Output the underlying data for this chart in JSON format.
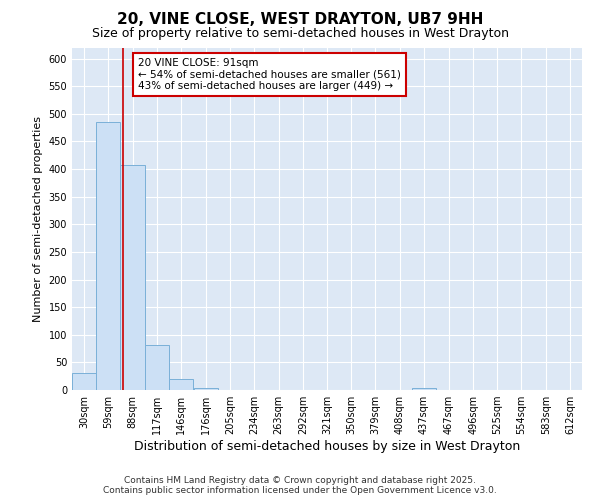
{
  "title": "20, VINE CLOSE, WEST DRAYTON, UB7 9HH",
  "subtitle": "Size of property relative to semi-detached houses in West Drayton",
  "xlabel": "Distribution of semi-detached houses by size in West Drayton",
  "ylabel": "Number of semi-detached properties",
  "footer_line1": "Contains HM Land Registry data © Crown copyright and database right 2025.",
  "footer_line2": "Contains public sector information licensed under the Open Government Licence v3.0.",
  "bin_edges": [
    30,
    59,
    88,
    117,
    146,
    176,
    205,
    234,
    263,
    292,
    321,
    350,
    379,
    408,
    437,
    467,
    496,
    525,
    554,
    583,
    612
  ],
  "bar_heights": [
    30,
    485,
    407,
    82,
    20,
    4,
    0,
    0,
    0,
    0,
    0,
    0,
    0,
    0,
    4,
    0,
    0,
    0,
    0,
    0,
    0
  ],
  "bar_color": "#cce0f5",
  "bar_edge_color": "#7ab0d8",
  "property_size": 91,
  "annotation_line1": "20 VINE CLOSE: 91sqm",
  "annotation_line2": "← 54% of semi-detached houses are smaller (561)",
  "annotation_line3": "43% of semi-detached houses are larger (449) →",
  "vline_color": "#cc0000",
  "annotation_box_color": "#cc0000",
  "ylim": [
    0,
    620
  ],
  "plot_background_color": "#dde8f5",
  "grid_color": "#ffffff",
  "tick_labels": [
    "30sqm",
    "59sqm",
    "88sqm",
    "117sqm",
    "146sqm",
    "176sqm",
    "205sqm",
    "234sqm",
    "263sqm",
    "292sqm",
    "321sqm",
    "350sqm",
    "379sqm",
    "408sqm",
    "437sqm",
    "467sqm",
    "496sqm",
    "525sqm",
    "554sqm",
    "583sqm",
    "612sqm"
  ],
  "yticks": [
    0,
    50,
    100,
    150,
    200,
    250,
    300,
    350,
    400,
    450,
    500,
    550,
    600
  ],
  "title_fontsize": 11,
  "subtitle_fontsize": 9,
  "ylabel_fontsize": 8,
  "xlabel_fontsize": 9,
  "tick_fontsize": 7,
  "footer_fontsize": 6.5
}
